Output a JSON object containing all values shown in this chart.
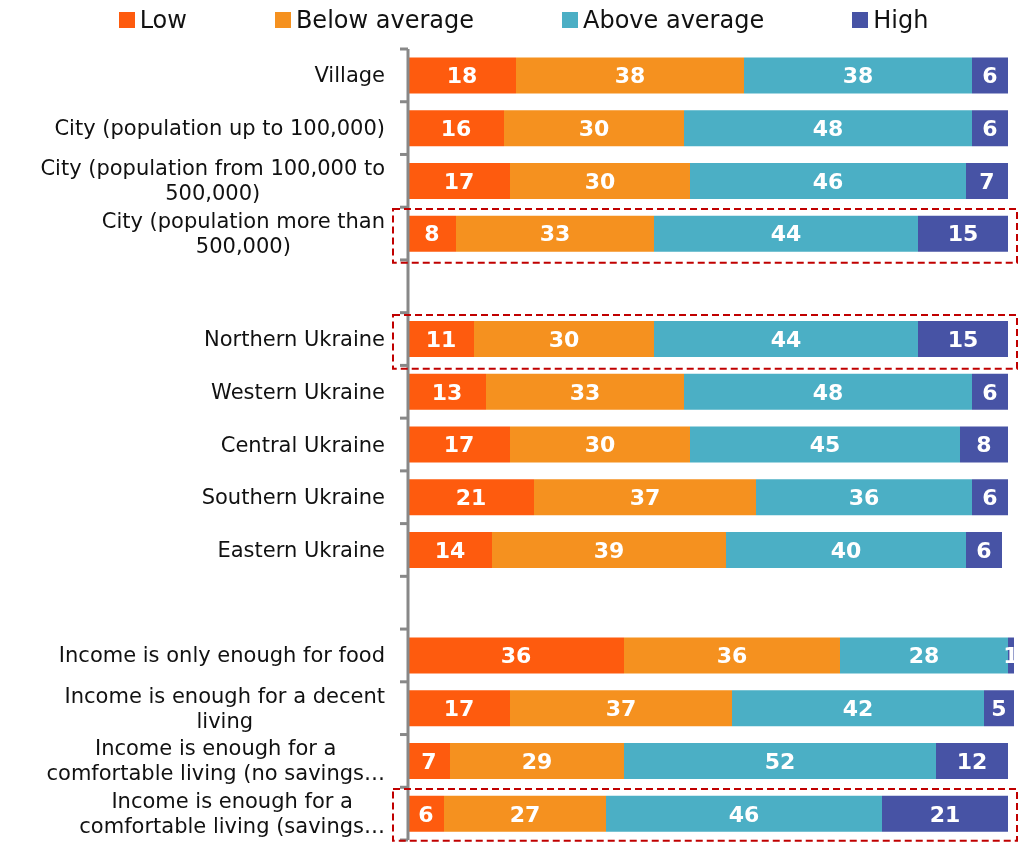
{
  "chart_data": {
    "type": "bar",
    "orientation": "horizontal",
    "stacked": true,
    "data_labels": true,
    "legend": "top",
    "tick_labels": "y",
    "categories": [
      "Village",
      "City (population up to 100,000)",
      "City (population from 100,000 to 500,000)",
      "City (population more than 500,000)",
      null,
      "Northern Ukraine",
      "Western Ukraine",
      "Central Ukraine",
      "Southern Ukraine",
      "Eastern Ukraine",
      null,
      "Income is only enough for food",
      "Income is enough for a decent living",
      "Income is enough for a comfortable living (no savings…",
      "Income is enough for a comfortable living (savings…"
    ],
    "series": [
      {
        "name": "Low",
        "color": "#fe5b0e",
        "values": [
          18,
          16,
          17,
          8,
          null,
          11,
          13,
          17,
          21,
          14,
          null,
          36,
          17,
          7,
          6
        ]
      },
      {
        "name": "Below average",
        "color": "#f5911f",
        "values": [
          38,
          30,
          30,
          33,
          null,
          30,
          33,
          30,
          37,
          39,
          null,
          36,
          37,
          29,
          27
        ]
      },
      {
        "name": "Above average",
        "color": "#4bafc5",
        "values": [
          38,
          48,
          46,
          44,
          null,
          44,
          48,
          45,
          36,
          40,
          null,
          28,
          42,
          52,
          46
        ]
      },
      {
        "name": "High",
        "color": "#4753a5",
        "values": [
          6,
          6,
          7,
          15,
          null,
          15,
          6,
          8,
          6,
          6,
          null,
          1,
          5,
          12,
          21
        ]
      }
    ]
  }
}
